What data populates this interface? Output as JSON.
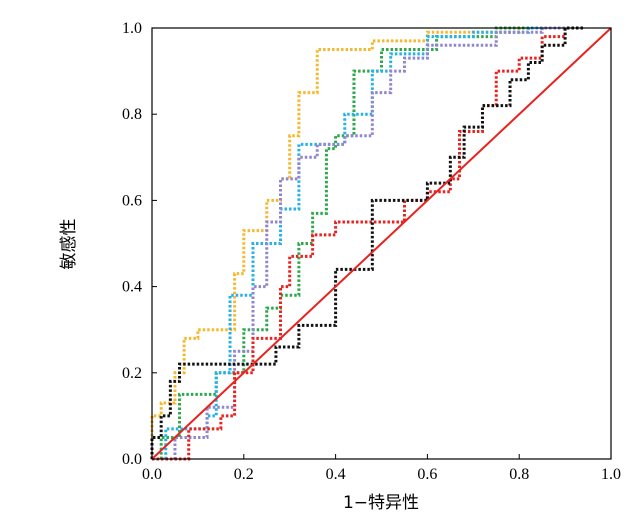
{
  "chart_data": {
    "type": "line",
    "title": "",
    "xlabel": "1−特异性",
    "ylabel": "敏感性",
    "xlim": [
      0,
      1.0
    ],
    "ylim": [
      0,
      1.0
    ],
    "xticks": [
      "0.0",
      "0.2",
      "0.4",
      "0.6",
      "0.8",
      "1.0"
    ],
    "yticks": [
      "0.0",
      "0.2",
      "0.4",
      "0.6",
      "0.8",
      "1.0"
    ],
    "grid": false,
    "legend": "none",
    "reference_line": {
      "x": [
        0,
        1
      ],
      "y": [
        0,
        1
      ],
      "color": "#e8221f",
      "style": "solid"
    },
    "series": [
      {
        "color": "#f5b82e",
        "style": "dotted",
        "points": [
          [
            0,
            0
          ],
          [
            0,
            0.1
          ],
          [
            0.02,
            0.1
          ],
          [
            0.02,
            0.13
          ],
          [
            0.05,
            0.13
          ],
          [
            0.05,
            0.2
          ],
          [
            0.07,
            0.2
          ],
          [
            0.07,
            0.28
          ],
          [
            0.1,
            0.28
          ],
          [
            0.1,
            0.3
          ],
          [
            0.18,
            0.3
          ],
          [
            0.18,
            0.43
          ],
          [
            0.2,
            0.43
          ],
          [
            0.2,
            0.53
          ],
          [
            0.25,
            0.53
          ],
          [
            0.25,
            0.6
          ],
          [
            0.28,
            0.6
          ],
          [
            0.28,
            0.65
          ],
          [
            0.3,
            0.65
          ],
          [
            0.3,
            0.75
          ],
          [
            0.32,
            0.75
          ],
          [
            0.32,
            0.85
          ],
          [
            0.36,
            0.85
          ],
          [
            0.36,
            0.95
          ],
          [
            0.48,
            0.95
          ],
          [
            0.48,
            0.97
          ],
          [
            0.6,
            0.97
          ],
          [
            0.6,
            0.99
          ],
          [
            0.8,
            0.99
          ],
          [
            0.8,
            1.0
          ],
          [
            0.9,
            1.0
          ]
        ]
      },
      {
        "color": "#2ea84a",
        "style": "dotted",
        "points": [
          [
            0,
            0
          ],
          [
            0.02,
            0
          ],
          [
            0.02,
            0.05
          ],
          [
            0.06,
            0.05
          ],
          [
            0.06,
            0.15
          ],
          [
            0.14,
            0.15
          ],
          [
            0.14,
            0.2
          ],
          [
            0.2,
            0.2
          ],
          [
            0.2,
            0.3
          ],
          [
            0.25,
            0.3
          ],
          [
            0.25,
            0.35
          ],
          [
            0.28,
            0.35
          ],
          [
            0.28,
            0.38
          ],
          [
            0.32,
            0.38
          ],
          [
            0.32,
            0.5
          ],
          [
            0.35,
            0.5
          ],
          [
            0.35,
            0.57
          ],
          [
            0.38,
            0.57
          ],
          [
            0.38,
            0.72
          ],
          [
            0.4,
            0.72
          ],
          [
            0.4,
            0.75
          ],
          [
            0.44,
            0.75
          ],
          [
            0.44,
            0.9
          ],
          [
            0.5,
            0.9
          ],
          [
            0.5,
            0.95
          ],
          [
            0.62,
            0.95
          ],
          [
            0.62,
            0.98
          ],
          [
            0.75,
            0.98
          ],
          [
            0.75,
            1.0
          ],
          [
            0.9,
            1.0
          ]
        ]
      },
      {
        "color": "#26b2e5",
        "style": "dotted",
        "points": [
          [
            0,
            0
          ],
          [
            0.03,
            0
          ],
          [
            0.03,
            0.07
          ],
          [
            0.12,
            0.07
          ],
          [
            0.12,
            0.1
          ],
          [
            0.14,
            0.1
          ],
          [
            0.14,
            0.2
          ],
          [
            0.17,
            0.2
          ],
          [
            0.17,
            0.38
          ],
          [
            0.22,
            0.38
          ],
          [
            0.22,
            0.5
          ],
          [
            0.28,
            0.5
          ],
          [
            0.28,
            0.58
          ],
          [
            0.32,
            0.58
          ],
          [
            0.32,
            0.73
          ],
          [
            0.42,
            0.73
          ],
          [
            0.42,
            0.8
          ],
          [
            0.48,
            0.8
          ],
          [
            0.48,
            0.9
          ],
          [
            0.52,
            0.9
          ],
          [
            0.52,
            0.94
          ],
          [
            0.6,
            0.94
          ],
          [
            0.6,
            0.98
          ],
          [
            0.7,
            0.98
          ],
          [
            0.7,
            0.99
          ],
          [
            0.82,
            0.99
          ],
          [
            0.82,
            1.0
          ],
          [
            0.9,
            1.0
          ]
        ]
      },
      {
        "color": "#8f86cc",
        "style": "dotted",
        "points": [
          [
            0,
            0
          ],
          [
            0.05,
            0
          ],
          [
            0.05,
            0.05
          ],
          [
            0.12,
            0.05
          ],
          [
            0.12,
            0.12
          ],
          [
            0.18,
            0.12
          ],
          [
            0.18,
            0.25
          ],
          [
            0.22,
            0.25
          ],
          [
            0.22,
            0.4
          ],
          [
            0.25,
            0.4
          ],
          [
            0.25,
            0.55
          ],
          [
            0.28,
            0.55
          ],
          [
            0.28,
            0.65
          ],
          [
            0.32,
            0.65
          ],
          [
            0.32,
            0.7
          ],
          [
            0.36,
            0.7
          ],
          [
            0.36,
            0.73
          ],
          [
            0.42,
            0.73
          ],
          [
            0.42,
            0.75
          ],
          [
            0.48,
            0.75
          ],
          [
            0.48,
            0.85
          ],
          [
            0.52,
            0.85
          ],
          [
            0.52,
            0.9
          ],
          [
            0.55,
            0.9
          ],
          [
            0.55,
            0.93
          ],
          [
            0.6,
            0.93
          ],
          [
            0.6,
            0.96
          ],
          [
            0.75,
            0.96
          ],
          [
            0.75,
            0.99
          ],
          [
            0.85,
            0.99
          ],
          [
            0.85,
            1.0
          ],
          [
            0.9,
            1.0
          ]
        ]
      },
      {
        "color": "#e8221f",
        "style": "dotted",
        "points": [
          [
            0,
            0
          ],
          [
            0.08,
            0
          ],
          [
            0.08,
            0.07
          ],
          [
            0.15,
            0.07
          ],
          [
            0.15,
            0.1
          ],
          [
            0.18,
            0.1
          ],
          [
            0.18,
            0.2
          ],
          [
            0.22,
            0.2
          ],
          [
            0.22,
            0.28
          ],
          [
            0.28,
            0.28
          ],
          [
            0.28,
            0.4
          ],
          [
            0.3,
            0.4
          ],
          [
            0.3,
            0.47
          ],
          [
            0.35,
            0.47
          ],
          [
            0.35,
            0.52
          ],
          [
            0.4,
            0.52
          ],
          [
            0.4,
            0.55
          ],
          [
            0.55,
            0.55
          ],
          [
            0.55,
            0.6
          ],
          [
            0.6,
            0.6
          ],
          [
            0.6,
            0.62
          ],
          [
            0.65,
            0.62
          ],
          [
            0.65,
            0.65
          ],
          [
            0.67,
            0.65
          ],
          [
            0.67,
            0.76
          ],
          [
            0.72,
            0.76
          ],
          [
            0.72,
            0.82
          ],
          [
            0.75,
            0.82
          ],
          [
            0.75,
            0.9
          ],
          [
            0.8,
            0.9
          ],
          [
            0.8,
            0.93
          ],
          [
            0.85,
            0.93
          ],
          [
            0.85,
            0.98
          ],
          [
            0.9,
            0.98
          ],
          [
            0.9,
            1.0
          ],
          [
            0.94,
            1.0
          ]
        ]
      },
      {
        "color": "#111111",
        "style": "dotted",
        "points": [
          [
            0,
            0
          ],
          [
            0,
            0.05
          ],
          [
            0.02,
            0.05
          ],
          [
            0.02,
            0.1
          ],
          [
            0.04,
            0.1
          ],
          [
            0.04,
            0.18
          ],
          [
            0.06,
            0.18
          ],
          [
            0.06,
            0.22
          ],
          [
            0.27,
            0.22
          ],
          [
            0.27,
            0.26
          ],
          [
            0.32,
            0.26
          ],
          [
            0.32,
            0.31
          ],
          [
            0.4,
            0.31
          ],
          [
            0.4,
            0.44
          ],
          [
            0.48,
            0.44
          ],
          [
            0.48,
            0.6
          ],
          [
            0.6,
            0.6
          ],
          [
            0.6,
            0.64
          ],
          [
            0.65,
            0.64
          ],
          [
            0.65,
            0.7
          ],
          [
            0.68,
            0.7
          ],
          [
            0.68,
            0.77
          ],
          [
            0.72,
            0.77
          ],
          [
            0.72,
            0.82
          ],
          [
            0.78,
            0.82
          ],
          [
            0.78,
            0.88
          ],
          [
            0.82,
            0.88
          ],
          [
            0.82,
            0.92
          ],
          [
            0.85,
            0.92
          ],
          [
            0.85,
            0.96
          ],
          [
            0.9,
            0.96
          ],
          [
            0.9,
            1.0
          ],
          [
            0.94,
            1.0
          ]
        ]
      }
    ]
  }
}
